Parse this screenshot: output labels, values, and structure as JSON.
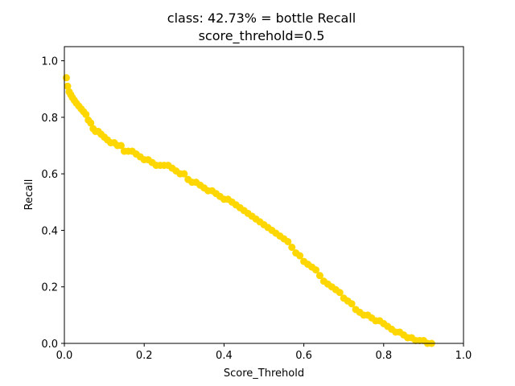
{
  "chart_data": {
    "type": "scatter",
    "title": "class: 42.73% = bottle Recall",
    "subtitle": "score_threhold=0.5",
    "xlabel": "Score_Threhold",
    "ylabel": "Recall",
    "xlim": [
      0.0,
      1.0
    ],
    "ylim": [
      0.0,
      1.05
    ],
    "xticks": [
      "0.0",
      "0.2",
      "0.4",
      "0.6",
      "0.8",
      "1.0"
    ],
    "yticks": [
      "0.0",
      "0.2",
      "0.4",
      "0.6",
      "0.8",
      "1.0"
    ],
    "grid": false,
    "legend": "none",
    "marker_color": "#FFD700",
    "series": [
      {
        "x": [
          0.005,
          0.008,
          0.012,
          0.016,
          0.02,
          0.025,
          0.03,
          0.036,
          0.042,
          0.048,
          0.054,
          0.06,
          0.066,
          0.072,
          0.078,
          0.085,
          0.092,
          0.1,
          0.108,
          0.116,
          0.125,
          0.133,
          0.142,
          0.15,
          0.16,
          0.17,
          0.18,
          0.19,
          0.2,
          0.21,
          0.22,
          0.23,
          0.24,
          0.25,
          0.26,
          0.27,
          0.28,
          0.29,
          0.3,
          0.31,
          0.32,
          0.33,
          0.34,
          0.35,
          0.36,
          0.37,
          0.38,
          0.39,
          0.4,
          0.41,
          0.42,
          0.43,
          0.44,
          0.45,
          0.46,
          0.47,
          0.48,
          0.49,
          0.5,
          0.51,
          0.52,
          0.53,
          0.54,
          0.55,
          0.56,
          0.57,
          0.58,
          0.59,
          0.6,
          0.61,
          0.62,
          0.63,
          0.64,
          0.65,
          0.66,
          0.67,
          0.68,
          0.69,
          0.7,
          0.71,
          0.72,
          0.73,
          0.74,
          0.75,
          0.76,
          0.77,
          0.78,
          0.79,
          0.8,
          0.81,
          0.82,
          0.83,
          0.84,
          0.85,
          0.86,
          0.87,
          0.88,
          0.89,
          0.9,
          0.91,
          0.92
        ],
        "y": [
          0.94,
          0.91,
          0.89,
          0.88,
          0.87,
          0.86,
          0.85,
          0.84,
          0.83,
          0.82,
          0.81,
          0.79,
          0.78,
          0.76,
          0.75,
          0.75,
          0.74,
          0.73,
          0.72,
          0.71,
          0.71,
          0.7,
          0.7,
          0.68,
          0.68,
          0.68,
          0.67,
          0.66,
          0.65,
          0.65,
          0.64,
          0.63,
          0.63,
          0.63,
          0.63,
          0.62,
          0.61,
          0.6,
          0.6,
          0.58,
          0.57,
          0.57,
          0.56,
          0.55,
          0.54,
          0.54,
          0.53,
          0.52,
          0.51,
          0.51,
          0.5,
          0.49,
          0.48,
          0.47,
          0.46,
          0.45,
          0.44,
          0.43,
          0.42,
          0.41,
          0.4,
          0.39,
          0.38,
          0.37,
          0.36,
          0.34,
          0.32,
          0.31,
          0.29,
          0.28,
          0.27,
          0.26,
          0.24,
          0.22,
          0.21,
          0.2,
          0.19,
          0.18,
          0.16,
          0.15,
          0.14,
          0.12,
          0.11,
          0.1,
          0.1,
          0.09,
          0.08,
          0.08,
          0.07,
          0.06,
          0.05,
          0.04,
          0.04,
          0.03,
          0.02,
          0.02,
          0.01,
          0.01,
          0.01,
          0.0,
          0.0
        ]
      }
    ]
  }
}
